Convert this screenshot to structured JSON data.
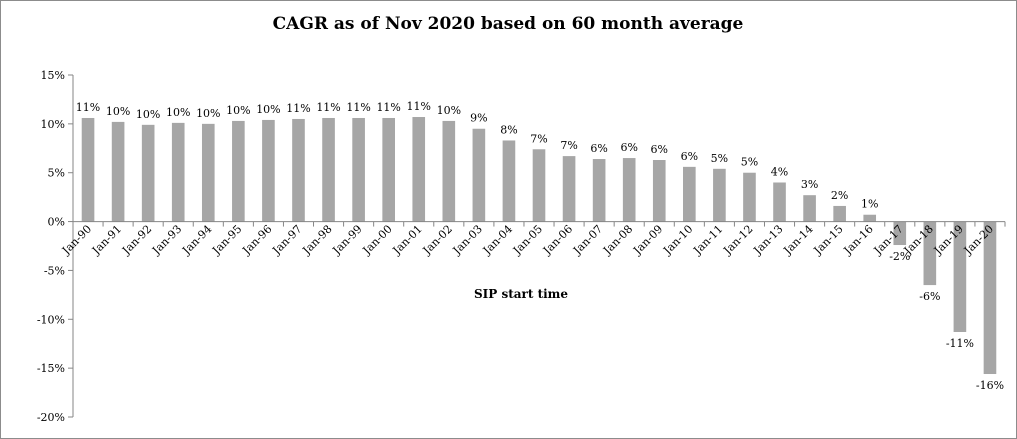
{
  "chart_data": {
    "type": "bar",
    "title": "CAGR as of Nov 2020 based on 60 month average",
    "xlabel": "SIP start time",
    "ylabel": "",
    "ylim": [
      -20,
      15
    ],
    "yticks": [
      15,
      10,
      5,
      0,
      -5,
      -10,
      -15,
      -20
    ],
    "ytick_labels": [
      "15%",
      "10%",
      "5%",
      "0%",
      "-5%",
      "-10%",
      "-15%",
      "-20%"
    ],
    "grid": false,
    "legend": "none",
    "bar_color": "#a6a6a6",
    "categories": [
      "Jan-90",
      "Jan-91",
      "Jan-92",
      "Jan-93",
      "Jan-94",
      "Jan-95",
      "Jan-96",
      "Jan-97",
      "Jan-98",
      "Jan-99",
      "Jan-00",
      "Jan-01",
      "Jan-02",
      "Jan-03",
      "Jan-04",
      "Jan-05",
      "Jan-06",
      "Jan-07",
      "Jan-08",
      "Jan-09",
      "Jan-10",
      "Jan-11",
      "Jan-12",
      "Jan-13",
      "Jan-14",
      "Jan-15",
      "Jan-16",
      "Jan-17",
      "Jan-18",
      "Jan-19",
      "Jan-20"
    ],
    "values": [
      10.6,
      10.2,
      9.9,
      10.1,
      10.0,
      10.3,
      10.4,
      10.5,
      10.6,
      10.6,
      10.6,
      10.7,
      10.3,
      9.5,
      8.3,
      7.4,
      6.7,
      6.4,
      6.5,
      6.3,
      5.6,
      5.4,
      5.0,
      4.0,
      2.7,
      1.6,
      0.7,
      -2.4,
      -6.5,
      -11.3,
      -15.6
    ],
    "data_labels": [
      "11%",
      "10%",
      "10%",
      "10%",
      "10%",
      "10%",
      "10%",
      "11%",
      "11%",
      "11%",
      "11%",
      "11%",
      "10%",
      "9%",
      "8%",
      "7%",
      "7%",
      "6%",
      "6%",
      "6%",
      "6%",
      "5%",
      "5%",
      "4%",
      "3%",
      "2%",
      "1%",
      "-2%",
      "-6%",
      "-11%",
      "-16%"
    ]
  }
}
